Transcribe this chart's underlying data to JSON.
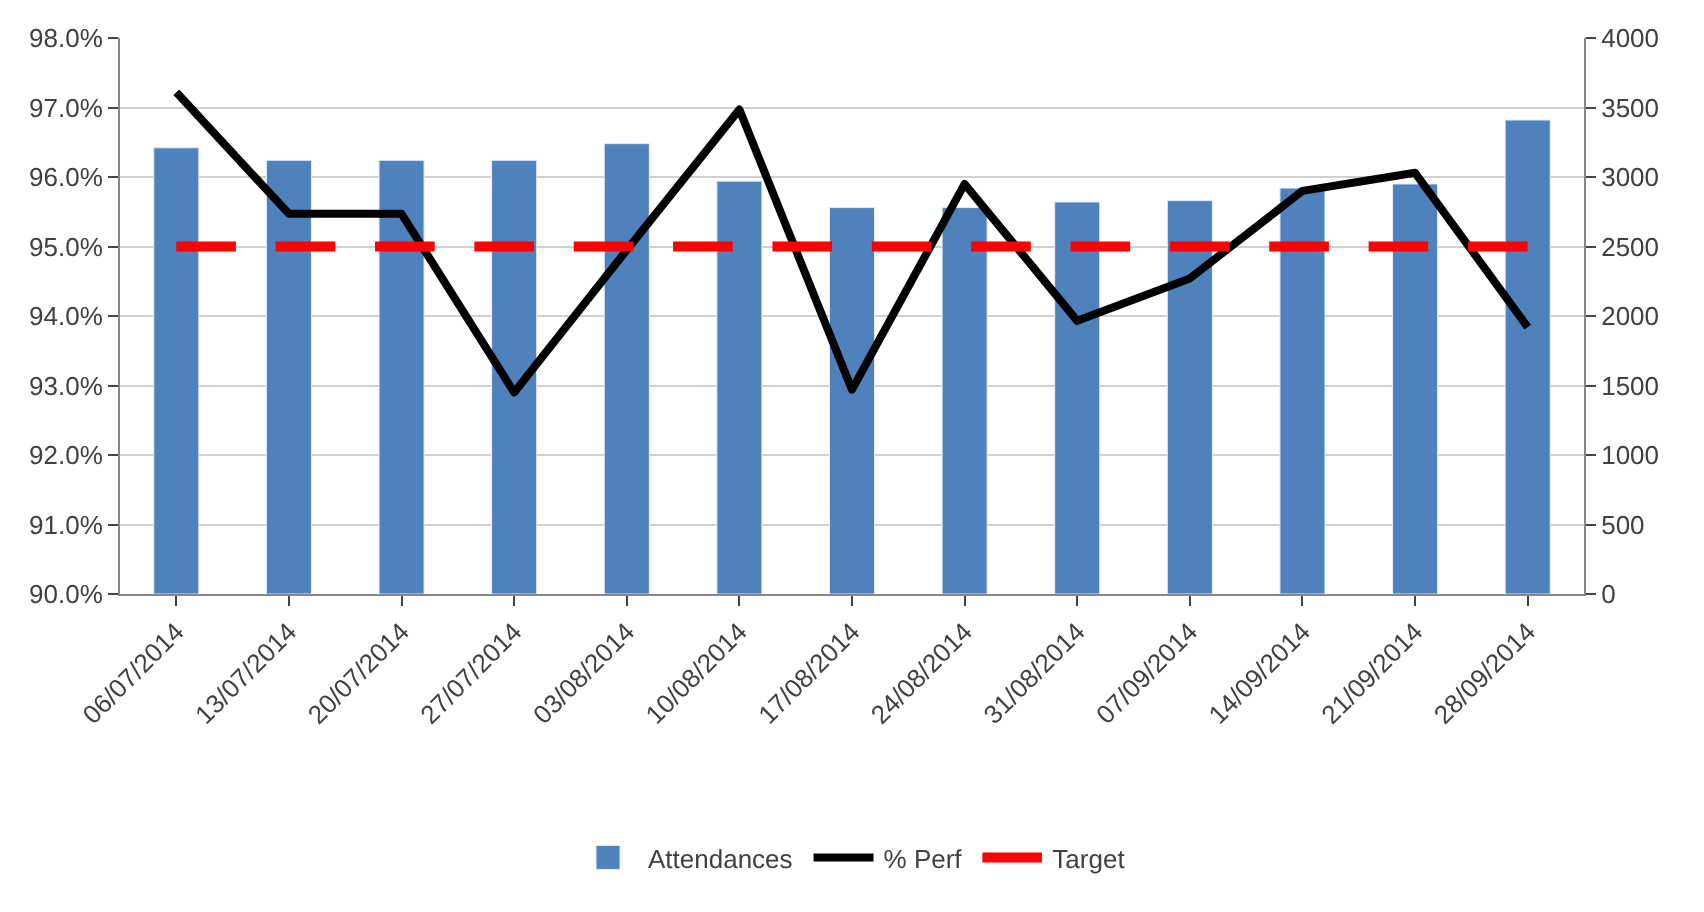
{
  "chart_data": {
    "type": "bar",
    "categories": [
      "06/07/2014",
      "13/07/2014",
      "20/07/2014",
      "27/07/2014",
      "03/08/2014",
      "10/08/2014",
      "17/08/2014",
      "24/08/2014",
      "31/08/2014",
      "07/09/2014",
      "14/09/2014",
      "21/09/2014",
      "28/09/2014"
    ],
    "series": [
      {
        "name": "Attendances",
        "axis": "y2",
        "color": "#4f81bd",
        "values": [
          3210,
          3120,
          3120,
          3120,
          3240,
          2970,
          2780,
          2780,
          2820,
          2830,
          2920,
          2950,
          3410
        ]
      },
      {
        "name": "% Perf",
        "type": "line",
        "color": "#000000",
        "line_style": "solid",
        "values": [
          97.22,
          95.47,
          95.47,
          92.9,
          94.95,
          96.97,
          92.94,
          95.9,
          93.93,
          94.54,
          95.8,
          96.06,
          93.84
        ]
      },
      {
        "name": "Target",
        "type": "line",
        "color": "#ff0000",
        "line_style": "dashed",
        "values": [
          95,
          95,
          95,
          95,
          95,
          95,
          95,
          95,
          95,
          95,
          95,
          95,
          95
        ]
      }
    ],
    "ylim": [
      90,
      98
    ],
    "yticks": [
      {
        "value": 90,
        "label": "90.0%"
      },
      {
        "value": 91,
        "label": "91.0%"
      },
      {
        "value": 92,
        "label": "92.0%"
      },
      {
        "value": 93,
        "label": "93.0%"
      },
      {
        "value": 94,
        "label": "94.0%"
      },
      {
        "value": 95,
        "label": "95.0%"
      },
      {
        "value": 96,
        "label": "96.0%"
      },
      {
        "value": 97,
        "label": "97.0%"
      },
      {
        "value": 98,
        "label": "98.0%"
      }
    ],
    "y2lim": [
      0,
      4000
    ],
    "y2ticks": [
      0,
      500,
      1000,
      1500,
      2000,
      2500,
      3000,
      3500,
      4000
    ],
    "grid": "y",
    "legend": "bottom"
  }
}
